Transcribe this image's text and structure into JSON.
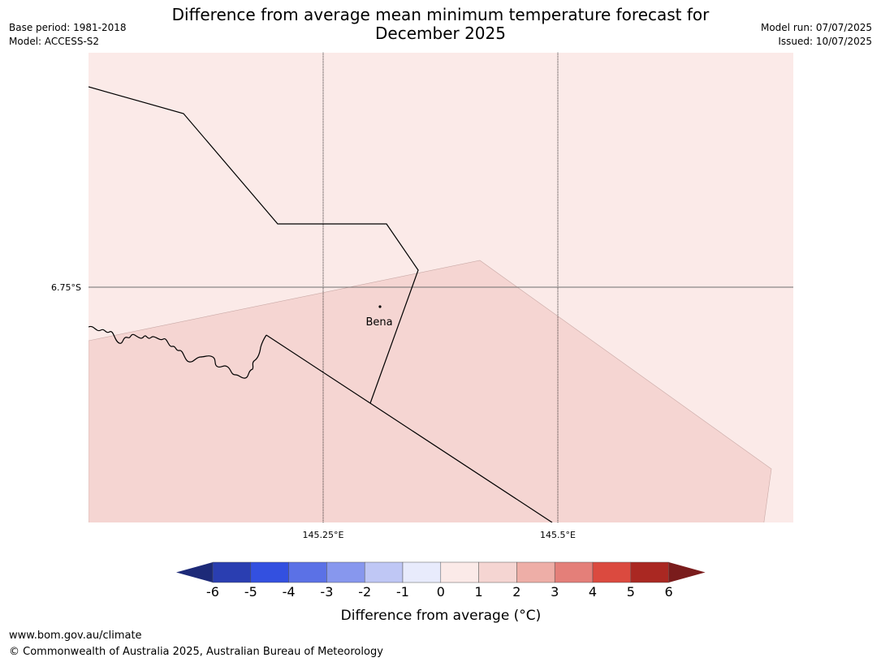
{
  "title_line1": "Difference from average mean minimum temperature forecast for",
  "title_line2": "December 2025",
  "meta_left": {
    "base_period": "Base period: 1981-2018",
    "model": "Model: ACCESS-S2"
  },
  "meta_right": {
    "model_run": "Model run: 07/07/2025",
    "issued": "Issued: 10/07/2025"
  },
  "map": {
    "lat_label": "6.75°S",
    "lon_labels": [
      "145.25°E",
      "145.5°E"
    ],
    "place_name": "Bena",
    "background_category": "0 to 1",
    "region_category": "1 to 2"
  },
  "colorbar": {
    "label": "Difference from average (°C)",
    "ticks": [
      "-6",
      "-5",
      "-4",
      "-3",
      "-2",
      "-1",
      "0",
      "1",
      "2",
      "3",
      "4",
      "5",
      "6"
    ],
    "under_color": "#1d2a78",
    "over_color": "#7a1c1c",
    "colors": [
      "#2a3eb1",
      "#3350e0",
      "#5b71e6",
      "#8797ee",
      "#bfc7f5",
      "#e8ebfc",
      "#fbeae8",
      "#f5d5d2",
      "#eeaea7",
      "#e47f79",
      "#db4a3f",
      "#aa2822"
    ]
  },
  "footer": {
    "url": "www.bom.gov.au/climate",
    "copyright": "© Commonwealth of Australia 2025, Australian Bureau of Meteorology"
  }
}
